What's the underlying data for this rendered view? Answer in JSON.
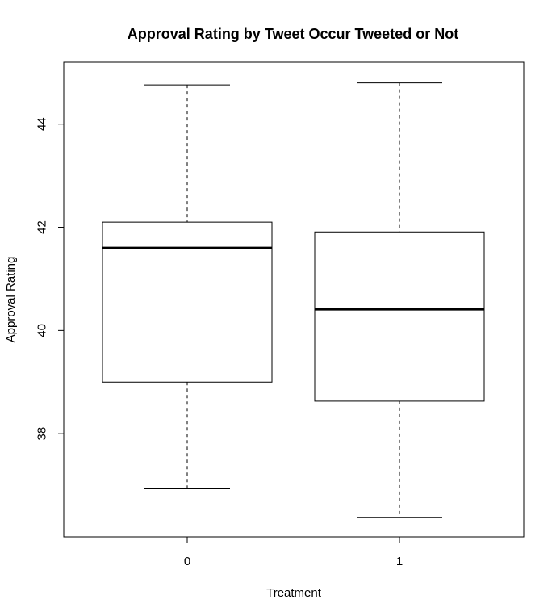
{
  "chart_data": {
    "type": "boxplot",
    "title": "Approval Rating by Tweet Occur Tweeted or Not",
    "xlabel": "Treatment",
    "ylabel": "Approval Rating",
    "categories": [
      "0",
      "1"
    ],
    "boxes": [
      {
        "category": "0",
        "min": 36.93,
        "q1": 39.0,
        "median": 41.6,
        "q3": 42.1,
        "max": 44.76
      },
      {
        "category": "1",
        "min": 36.38,
        "q1": 38.63,
        "median": 40.41,
        "q3": 41.91,
        "max": 44.8
      }
    ],
    "y_ticks": [
      38,
      40,
      42,
      44
    ],
    "ylim": [
      36.0,
      45.2
    ],
    "grid": false,
    "legend": "none"
  }
}
